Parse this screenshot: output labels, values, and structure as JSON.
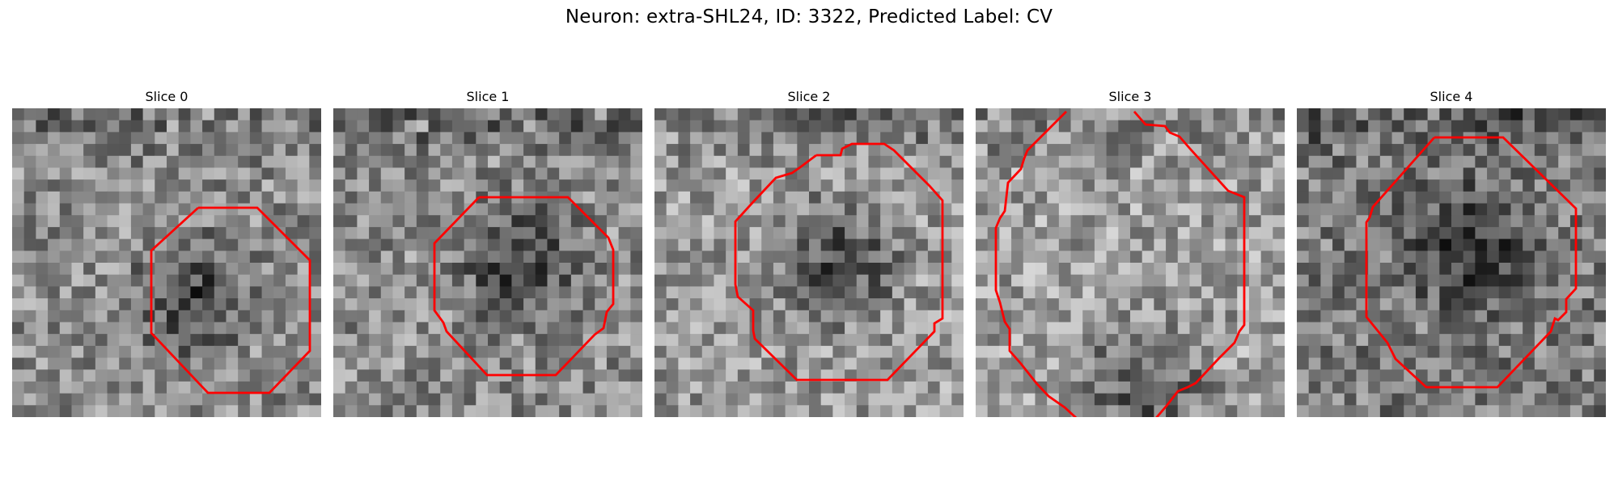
{
  "figure": {
    "title": "Neuron: extra-SHL24, ID: 3322, Predicted Label: CV",
    "contour_color": "#ff0000",
    "colormap": "gray",
    "slices": [
      {
        "title": "Slice 0",
        "seed": 11,
        "dark_spot": [
          0.58,
          0.62
        ],
        "brightness": 0.55
      },
      {
        "title": "Slice 1",
        "seed": 23,
        "dark_spot": [
          0.6,
          0.5
        ],
        "brightness": 0.55
      },
      {
        "title": "Slice 2",
        "seed": 37,
        "dark_spot": [
          0.6,
          0.5
        ],
        "brightness": 0.6
      },
      {
        "title": "Slice 3",
        "seed": 41,
        "dark_spot": [
          0.55,
          0.9
        ],
        "brightness": 0.62
      },
      {
        "title": "Slice 4",
        "seed": 53,
        "dark_spot": [
          0.55,
          0.45
        ],
        "brightness": 0.48
      }
    ]
  }
}
